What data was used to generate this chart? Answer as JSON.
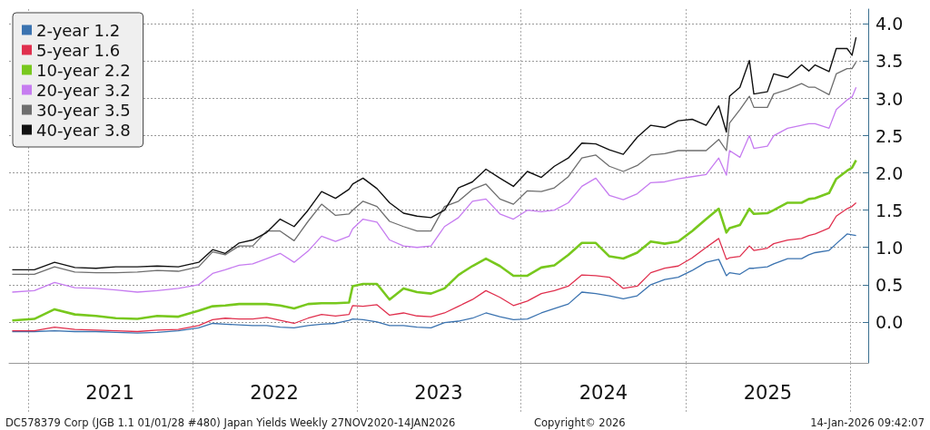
{
  "chart_data": {
    "type": "line",
    "x": [
      "2020-11-27",
      "2021-01-15",
      "2021-03-01",
      "2021-04-15",
      "2021-06-01",
      "2021-07-15",
      "2021-09-01",
      "2021-10-15",
      "2021-12-01",
      "2022-01-15",
      "2022-02-15",
      "2022-03-15",
      "2022-04-15",
      "2022-05-15",
      "2022-06-15",
      "2022-07-15",
      "2022-08-15",
      "2022-09-15",
      "2022-10-15",
      "2022-11-15",
      "2022-12-15",
      "2022-12-23",
      "2023-01-15",
      "2023-02-15",
      "2023-03-15",
      "2023-04-15",
      "2023-05-15",
      "2023-06-15",
      "2023-07-15",
      "2023-08-15",
      "2023-09-15",
      "2023-10-15",
      "2023-11-15",
      "2023-12-15",
      "2024-01-15",
      "2024-02-15",
      "2024-03-15",
      "2024-04-15",
      "2024-05-15",
      "2024-06-15",
      "2024-07-15",
      "2024-08-15",
      "2024-09-15",
      "2024-10-15",
      "2024-11-15",
      "2024-12-15",
      "2025-01-15",
      "2025-02-15",
      "2025-03-15",
      "2025-04-01",
      "2025-04-08",
      "2025-05-01",
      "2025-05-22",
      "2025-06-01",
      "2025-07-01",
      "2025-07-15",
      "2025-08-15",
      "2025-09-15",
      "2025-10-01",
      "2025-10-15",
      "2025-11-15",
      "2025-12-01",
      "2025-12-25",
      "2026-01-05",
      "2026-01-14"
    ],
    "series": [
      {
        "name": "2-year 1.2",
        "color": "#3b73b0",
        "values": [
          -0.13,
          -0.13,
          -0.12,
          -0.13,
          -0.13,
          -0.14,
          -0.15,
          -0.14,
          -0.12,
          -0.08,
          -0.02,
          -0.03,
          -0.04,
          -0.05,
          -0.05,
          -0.07,
          -0.08,
          -0.05,
          -0.03,
          -0.02,
          0.02,
          0.04,
          0.03,
          0.0,
          -0.05,
          -0.05,
          -0.07,
          -0.08,
          -0.01,
          0.01,
          0.05,
          0.12,
          0.07,
          0.03,
          0.04,
          0.12,
          0.18,
          0.24,
          0.4,
          0.38,
          0.35,
          0.31,
          0.35,
          0.5,
          0.57,
          0.6,
          0.69,
          0.8,
          0.84,
          0.62,
          0.66,
          0.64,
          0.72,
          0.72,
          0.74,
          0.78,
          0.85,
          0.85,
          0.9,
          0.93,
          0.96,
          1.05,
          1.18,
          1.17,
          1.16
        ]
      },
      {
        "name": "5-year 1.6",
        "color": "#e0304e",
        "values": [
          -0.12,
          -0.12,
          -0.07,
          -0.1,
          -0.11,
          -0.12,
          -0.13,
          -0.11,
          -0.1,
          -0.05,
          0.03,
          0.05,
          0.04,
          0.04,
          0.06,
          0.02,
          -0.02,
          0.05,
          0.1,
          0.08,
          0.1,
          0.22,
          0.21,
          0.23,
          0.09,
          0.12,
          0.08,
          0.07,
          0.12,
          0.21,
          0.3,
          0.42,
          0.33,
          0.22,
          0.28,
          0.38,
          0.42,
          0.48,
          0.63,
          0.62,
          0.6,
          0.45,
          0.48,
          0.66,
          0.72,
          0.75,
          0.86,
          1.0,
          1.12,
          0.84,
          0.86,
          0.88,
          1.02,
          0.96,
          0.99,
          1.05,
          1.1,
          1.12,
          1.16,
          1.18,
          1.26,
          1.42,
          1.52,
          1.55,
          1.6
        ]
      },
      {
        "name": "10-year 2.2",
        "color": "#78c81e",
        "values": [
          0.02,
          0.04,
          0.17,
          0.1,
          0.08,
          0.05,
          0.04,
          0.08,
          0.07,
          0.15,
          0.21,
          0.22,
          0.24,
          0.24,
          0.24,
          0.22,
          0.18,
          0.24,
          0.25,
          0.25,
          0.26,
          0.48,
          0.51,
          0.51,
          0.3,
          0.45,
          0.4,
          0.38,
          0.45,
          0.63,
          0.75,
          0.85,
          0.75,
          0.62,
          0.62,
          0.73,
          0.76,
          0.9,
          1.06,
          1.06,
          0.88,
          0.85,
          0.93,
          1.08,
          1.05,
          1.08,
          1.22,
          1.38,
          1.52,
          1.2,
          1.26,
          1.3,
          1.52,
          1.45,
          1.46,
          1.5,
          1.6,
          1.6,
          1.65,
          1.66,
          1.73,
          1.92,
          2.03,
          2.07,
          2.17
        ]
      },
      {
        "name": "20-year 3.2",
        "color": "#c67cf0",
        "values": [
          0.4,
          0.42,
          0.53,
          0.46,
          0.45,
          0.43,
          0.4,
          0.42,
          0.45,
          0.5,
          0.65,
          0.7,
          0.76,
          0.78,
          0.85,
          0.92,
          0.8,
          0.95,
          1.15,
          1.08,
          1.15,
          1.25,
          1.38,
          1.34,
          1.1,
          1.02,
          1.0,
          1.02,
          1.28,
          1.4,
          1.62,
          1.65,
          1.45,
          1.38,
          1.5,
          1.48,
          1.5,
          1.6,
          1.82,
          1.93,
          1.7,
          1.64,
          1.72,
          1.87,
          1.88,
          1.92,
          1.95,
          1.98,
          2.2,
          1.97,
          2.3,
          2.21,
          2.5,
          2.33,
          2.36,
          2.5,
          2.6,
          2.64,
          2.66,
          2.66,
          2.6,
          2.85,
          2.98,
          3.02,
          3.15
        ]
      },
      {
        "name": "30-year 3.5",
        "color": "#6e6e6e",
        "values": [
          0.64,
          0.64,
          0.74,
          0.67,
          0.66,
          0.66,
          0.67,
          0.69,
          0.68,
          0.74,
          0.94,
          0.9,
          1.02,
          1.02,
          1.22,
          1.22,
          1.09,
          1.35,
          1.58,
          1.43,
          1.45,
          1.5,
          1.62,
          1.55,
          1.35,
          1.28,
          1.22,
          1.22,
          1.55,
          1.62,
          1.78,
          1.85,
          1.65,
          1.58,
          1.76,
          1.75,
          1.8,
          1.95,
          2.2,
          2.24,
          2.09,
          2.02,
          2.1,
          2.24,
          2.26,
          2.3,
          2.3,
          2.3,
          2.45,
          2.3,
          2.67,
          2.85,
          3.03,
          2.88,
          2.88,
          3.06,
          3.12,
          3.2,
          3.15,
          3.15,
          3.05,
          3.33,
          3.4,
          3.4,
          3.49
        ]
      },
      {
        "name": "40-year 3.8",
        "color": "#111111",
        "values": [
          0.7,
          0.7,
          0.8,
          0.73,
          0.72,
          0.74,
          0.74,
          0.75,
          0.74,
          0.8,
          0.97,
          0.92,
          1.06,
          1.1,
          1.2,
          1.38,
          1.28,
          1.5,
          1.75,
          1.66,
          1.78,
          1.85,
          1.93,
          1.79,
          1.6,
          1.46,
          1.42,
          1.4,
          1.5,
          1.8,
          1.88,
          2.05,
          1.93,
          1.82,
          2.02,
          1.94,
          2.09,
          2.2,
          2.4,
          2.39,
          2.31,
          2.25,
          2.48,
          2.64,
          2.61,
          2.7,
          2.72,
          2.64,
          2.9,
          2.55,
          3.03,
          3.15,
          3.51,
          3.06,
          3.09,
          3.33,
          3.28,
          3.45,
          3.37,
          3.45,
          3.36,
          3.67,
          3.67,
          3.58,
          3.82
        ]
      }
    ],
    "xlim": [
      "2020-11-20",
      "2026-02-10"
    ],
    "xticks": [
      {
        "value": "2021-01-01",
        "label": null
      },
      {
        "value": "2021-07-02",
        "label": "2021"
      },
      {
        "value": "2022-01-01",
        "label": null
      },
      {
        "value": "2022-07-02",
        "label": "2022"
      },
      {
        "value": "2023-01-01",
        "label": null
      },
      {
        "value": "2023-07-02",
        "label": "2023"
      },
      {
        "value": "2024-01-01",
        "label": null
      },
      {
        "value": "2024-07-02",
        "label": "2024"
      },
      {
        "value": "2025-01-01",
        "label": null
      },
      {
        "value": "2025-07-02",
        "label": "2025"
      },
      {
        "value": "2026-01-01",
        "label": null
      }
    ],
    "ylim": [
      -0.55,
      4.2
    ],
    "yticks": [
      {
        "value": 0,
        "label": "0.0"
      },
      {
        "value": 0.5,
        "label": "0.5"
      },
      {
        "value": 1,
        "label": "1.0"
      },
      {
        "value": 1.5,
        "label": "1.5"
      },
      {
        "value": 2,
        "label": "2.0"
      },
      {
        "value": 2.5,
        "label": "2.5"
      },
      {
        "value": 3,
        "label": "3.0"
      },
      {
        "value": 3.5,
        "label": "3.5"
      },
      {
        "value": 4,
        "label": "4.0"
      }
    ],
    "grid": true,
    "legend": "top left",
    "annotations": [
      "DC578379 Corp (JGB 1.1 01/01/28 #480) Japan Yields Weekly 27NOV2020-14JAN2026",
      "Copyright© 2026",
      "14-Jan-2026 09:42:07"
    ]
  }
}
